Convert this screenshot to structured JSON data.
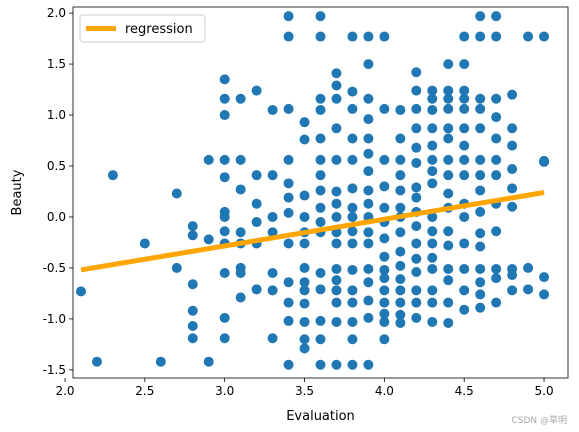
{
  "chart_data": {
    "type": "scatter",
    "title": "",
    "xlabel": "Evaluation",
    "ylabel": "Beauty",
    "xlim": [
      2.05,
      5.15
    ],
    "ylim": [
      -1.58,
      2.06
    ],
    "xticks": [
      "2.0",
      "2.5",
      "3.0",
      "3.5",
      "4.0",
      "4.5",
      "5.0"
    ],
    "yticks": [
      "-1.5",
      "-1.0",
      "-0.5",
      "0.0",
      "0.5",
      "1.0",
      "1.5",
      "2.0"
    ],
    "grid": false,
    "legend": {
      "placement": "upper-left",
      "entries": [
        "regression"
      ]
    },
    "colors": {
      "points": "#1f77b4",
      "regression": "#ffa500"
    },
    "regression": {
      "name": "regression",
      "x": [
        2.1,
        5.0
      ],
      "y": [
        -0.52,
        0.24
      ]
    },
    "points": {
      "x": [
        2.1,
        2.2,
        2.3,
        2.5,
        2.6,
        2.7,
        2.7,
        2.8,
        2.8,
        2.8,
        2.8,
        2.8,
        2.8,
        2.9,
        2.9,
        2.9,
        3.0,
        3.0,
        3.0,
        3.0,
        3.0,
        3.0,
        3.0,
        3.0,
        3.0,
        3.0,
        3.0,
        3.0,
        3.1,
        3.1,
        3.1,
        3.1,
        3.1,
        3.1,
        3.1,
        3.1,
        3.2,
        3.2,
        3.2,
        3.2,
        3.2,
        3.2,
        3.3,
        3.3,
        3.3,
        3.3,
        3.3,
        3.3,
        3.3,
        3.4,
        3.4,
        3.4,
        3.4,
        3.4,
        3.4,
        3.4,
        3.4,
        3.4,
        3.4,
        3.4,
        3.4,
        3.5,
        3.5,
        3.5,
        3.5,
        3.5,
        3.5,
        3.5,
        3.5,
        3.5,
        3.5,
        3.5,
        3.5,
        3.5,
        3.6,
        3.6,
        3.6,
        3.6,
        3.6,
        3.6,
        3.6,
        3.6,
        3.6,
        3.6,
        3.6,
        3.6,
        3.6,
        3.6,
        3.6,
        3.6,
        3.7,
        3.7,
        3.7,
        3.7,
        3.7,
        3.7,
        3.7,
        3.7,
        3.7,
        3.7,
        3.7,
        3.7,
        3.7,
        3.7,
        3.7,
        3.7,
        3.8,
        3.8,
        3.8,
        3.8,
        3.8,
        3.8,
        3.8,
        3.8,
        3.8,
        3.8,
        3.8,
        3.8,
        3.8,
        3.8,
        3.8,
        3.8,
        3.9,
        3.9,
        3.9,
        3.9,
        3.9,
        3.9,
        3.9,
        3.9,
        3.9,
        3.9,
        3.9,
        3.9,
        3.9,
        3.9,
        3.9,
        3.9,
        3.9,
        4.0,
        4.0,
        4.0,
        4.0,
        4.0,
        4.0,
        4.0,
        4.0,
        4.0,
        4.0,
        4.0,
        4.0,
        4.0,
        4.0,
        4.0,
        4.1,
        4.1,
        4.1,
        4.1,
        4.1,
        4.1,
        4.1,
        4.1,
        4.1,
        4.1,
        4.1,
        4.1,
        4.1,
        4.1,
        4.1,
        4.2,
        4.2,
        4.2,
        4.2,
        4.2,
        4.2,
        4.2,
        4.2,
        4.2,
        4.2,
        4.2,
        4.2,
        4.2,
        4.2,
        4.2,
        4.2,
        4.3,
        4.3,
        4.3,
        4.3,
        4.3,
        4.3,
        4.3,
        4.3,
        4.3,
        4.3,
        4.3,
        4.3,
        4.3,
        4.3,
        4.3,
        4.3,
        4.4,
        4.4,
        4.4,
        4.4,
        4.4,
        4.4,
        4.4,
        4.4,
        4.4,
        4.4,
        4.4,
        4.4,
        4.4,
        4.4,
        4.4,
        4.4,
        4.5,
        4.5,
        4.5,
        4.5,
        4.5,
        4.5,
        4.5,
        4.5,
        4.5,
        4.5,
        4.5,
        4.5,
        4.5,
        4.5,
        4.5,
        4.6,
        4.6,
        4.6,
        4.6,
        4.6,
        4.6,
        4.6,
        4.6,
        4.6,
        4.6,
        4.6,
        4.6,
        4.6,
        4.6,
        4.6,
        4.7,
        4.7,
        4.7,
        4.7,
        4.7,
        4.7,
        4.7,
        4.7,
        4.7,
        4.7,
        4.7,
        4.7,
        4.8,
        4.8,
        4.8,
        4.8,
        4.8,
        4.8,
        4.8,
        4.8,
        4.8,
        4.9,
        4.9,
        4.9,
        5.0,
        5.0,
        5.0,
        5.0,
        5.0
      ],
      "y": [
        -0.73,
        -1.42,
        0.41,
        -0.26,
        -1.42,
        0.23,
        -0.5,
        -0.09,
        -0.18,
        -0.66,
        -0.92,
        -1.07,
        -1.19,
        0.56,
        -0.22,
        -1.42,
        1.35,
        1.16,
        1.0,
        0.56,
        0.39,
        0.05,
        0.0,
        -0.14,
        -0.26,
        -0.55,
        -0.99,
        -1.19,
        1.16,
        0.56,
        0.27,
        -0.15,
        -0.26,
        -0.5,
        -0.55,
        -0.79,
        1.24,
        0.41,
        0.13,
        -0.05,
        -0.26,
        -0.71,
        1.05,
        0.41,
        0.0,
        -0.15,
        -0.55,
        -0.72,
        -1.19,
        1.97,
        1.77,
        1.06,
        0.56,
        0.33,
        0.19,
        0.04,
        -0.26,
        -0.64,
        -0.84,
        -1.02,
        -1.45,
        0.93,
        0.76,
        0.21,
        0.0,
        -0.15,
        -0.26,
        -0.5,
        -0.64,
        -0.72,
        -0.85,
        -1.03,
        -1.2,
        -1.29,
        1.97,
        1.77,
        1.16,
        1.05,
        0.77,
        0.56,
        0.41,
        0.26,
        0.09,
        -0.05,
        -0.15,
        -0.55,
        -0.71,
        -1.02,
        -1.45,
        -1.2,
        1.41,
        1.29,
        1.16,
        0.87,
        0.56,
        0.25,
        0.13,
        0.0,
        -0.15,
        -0.26,
        -0.51,
        -0.62,
        -0.72,
        -0.84,
        -1.03,
        -1.45,
        1.77,
        1.23,
        1.06,
        0.77,
        0.56,
        0.28,
        0.09,
        0.0,
        -0.14,
        -0.26,
        -0.52,
        -0.72,
        -0.84,
        -1.03,
        -1.2,
        -1.45,
        1.77,
        1.5,
        1.16,
        0.96,
        0.77,
        0.62,
        0.45,
        0.26,
        0.13,
        0.0,
        -0.15,
        -0.26,
        -0.51,
        -0.64,
        -0.82,
        -0.99,
        -1.45,
        1.77,
        1.06,
        0.56,
        0.3,
        0.09,
        -0.05,
        -0.21,
        -0.39,
        -0.52,
        -0.6,
        -0.72,
        -0.84,
        -0.95,
        -1.03,
        -1.2,
        1.05,
        0.77,
        0.56,
        0.41,
        0.26,
        0.09,
        0.0,
        -0.15,
        -0.34,
        -0.48,
        -0.61,
        -0.72,
        -0.84,
        -0.96,
        -1.04,
        1.42,
        1.24,
        1.06,
        0.87,
        0.68,
        0.53,
        0.29,
        0.19,
        0.05,
        -0.09,
        -0.26,
        -0.41,
        -0.54,
        -0.72,
        -0.84,
        -0.99,
        1.24,
        1.16,
        1.05,
        0.87,
        0.7,
        0.56,
        0.45,
        0.33,
        0.0,
        -0.14,
        -0.26,
        -0.4,
        -0.51,
        -0.72,
        -0.84,
        -1.03,
        1.5,
        1.24,
        1.16,
        1.06,
        0.87,
        0.77,
        0.56,
        0.41,
        0.23,
        0.09,
        -0.14,
        -0.28,
        -0.51,
        -0.62,
        -0.84,
        -1.04,
        1.77,
        1.5,
        1.24,
        1.16,
        1.06,
        0.87,
        0.7,
        0.56,
        0.41,
        0.13,
        0.0,
        -0.26,
        -0.51,
        -0.72,
        -0.91,
        1.97,
        1.77,
        1.16,
        1.06,
        0.87,
        0.56,
        0.41,
        0.26,
        0.05,
        -0.16,
        -0.29,
        -0.51,
        -0.64,
        -0.76,
        -0.89,
        1.97,
        1.77,
        1.16,
        0.98,
        0.77,
        0.56,
        0.41,
        0.13,
        -0.14,
        -0.51,
        -0.6,
        -0.84,
        1.2,
        0.87,
        0.7,
        0.47,
        0.28,
        0.1,
        -0.51,
        -0.57,
        -0.72,
        1.77,
        -0.5,
        -0.71,
        1.77,
        0.55,
        0.54,
        -0.59,
        -0.76
      ]
    }
  },
  "watermark": "CSDN @草明"
}
